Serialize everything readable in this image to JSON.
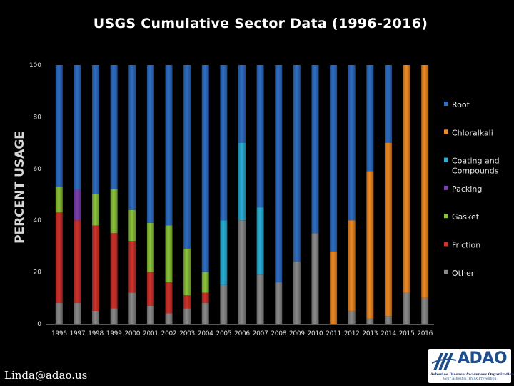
{
  "slide": {
    "title": "USGS Cumulative Sector Data (1996-2016)",
    "credit": "Linda@adao.us",
    "logo": {
      "name": "ADAO",
      "subtitle": "Asbestos Disease Awareness Organization",
      "tagline": "Hear Asbestos. Think Prevention."
    }
  },
  "colors": {
    "background": "#000000",
    "Roof": "#2f6ec4",
    "Chloralkali": "#f08a24",
    "Coating and Compounds": "#2ab0d8",
    "Packing": "#7a3fb0",
    "Gasket": "#8cc43a",
    "Friction": "#d0322c",
    "Other": "#8a8a8a"
  },
  "chart_data": {
    "type": "bar",
    "stacked": true,
    "title": "USGS Cumulative Sector Data (1996-2016)",
    "ylabel": "PERCENT USAGE",
    "xlabel": "",
    "ylim": [
      0,
      100
    ],
    "yticks": [
      0,
      20,
      40,
      60,
      80,
      100
    ],
    "grid": false,
    "legend_position": "right",
    "categories": [
      "1996",
      "1997",
      "1998",
      "1999",
      "2000",
      "2001",
      "2002",
      "2003",
      "2004",
      "2005",
      "2006",
      "2007",
      "2008",
      "2009",
      "2010",
      "2011",
      "2012",
      "2013",
      "2014",
      "2015",
      "2016"
    ],
    "series": [
      {
        "name": "Other",
        "values": [
          8,
          8,
          5,
          6,
          12,
          7,
          4,
          6,
          8,
          15,
          40,
          19,
          16,
          24,
          35,
          0,
          5,
          2,
          3,
          12,
          10
        ]
      },
      {
        "name": "Friction",
        "values": [
          35,
          32,
          33,
          29,
          20,
          13,
          12,
          5,
          4,
          0,
          0,
          0,
          0,
          0,
          0,
          0,
          0,
          0,
          0,
          0,
          0
        ]
      },
      {
        "name": "Gasket",
        "values": [
          10,
          0,
          12,
          17,
          12,
          19,
          22,
          18,
          8,
          0,
          0,
          0,
          0,
          0,
          0,
          0,
          0,
          0,
          0,
          0,
          0
        ]
      },
      {
        "name": "Packing",
        "values": [
          0,
          12,
          0,
          0,
          0,
          0,
          0,
          0,
          0,
          0,
          0,
          0,
          0,
          0,
          0,
          0,
          0,
          0,
          0,
          0,
          0
        ]
      },
      {
        "name": "Coating and Compounds",
        "values": [
          0,
          0,
          0,
          0,
          0,
          0,
          0,
          0,
          0,
          25,
          30,
          26,
          0,
          0,
          0,
          0,
          0,
          0,
          0,
          0,
          0
        ]
      },
      {
        "name": "Chloralkali",
        "values": [
          0,
          0,
          0,
          0,
          0,
          0,
          0,
          0,
          0,
          0,
          0,
          0,
          0,
          0,
          0,
          28,
          35,
          57,
          67,
          88,
          90
        ]
      },
      {
        "name": "Roof",
        "values": [
          47,
          48,
          50,
          48,
          56,
          61,
          62,
          71,
          80,
          60,
          30,
          55,
          84,
          76,
          65,
          72,
          60,
          41,
          30,
          0,
          0
        ]
      }
    ],
    "legend": [
      "Roof",
      "Chloralkali",
      "Coating and Compounds",
      "Packing",
      "Gasket",
      "Friction",
      "Other"
    ]
  }
}
